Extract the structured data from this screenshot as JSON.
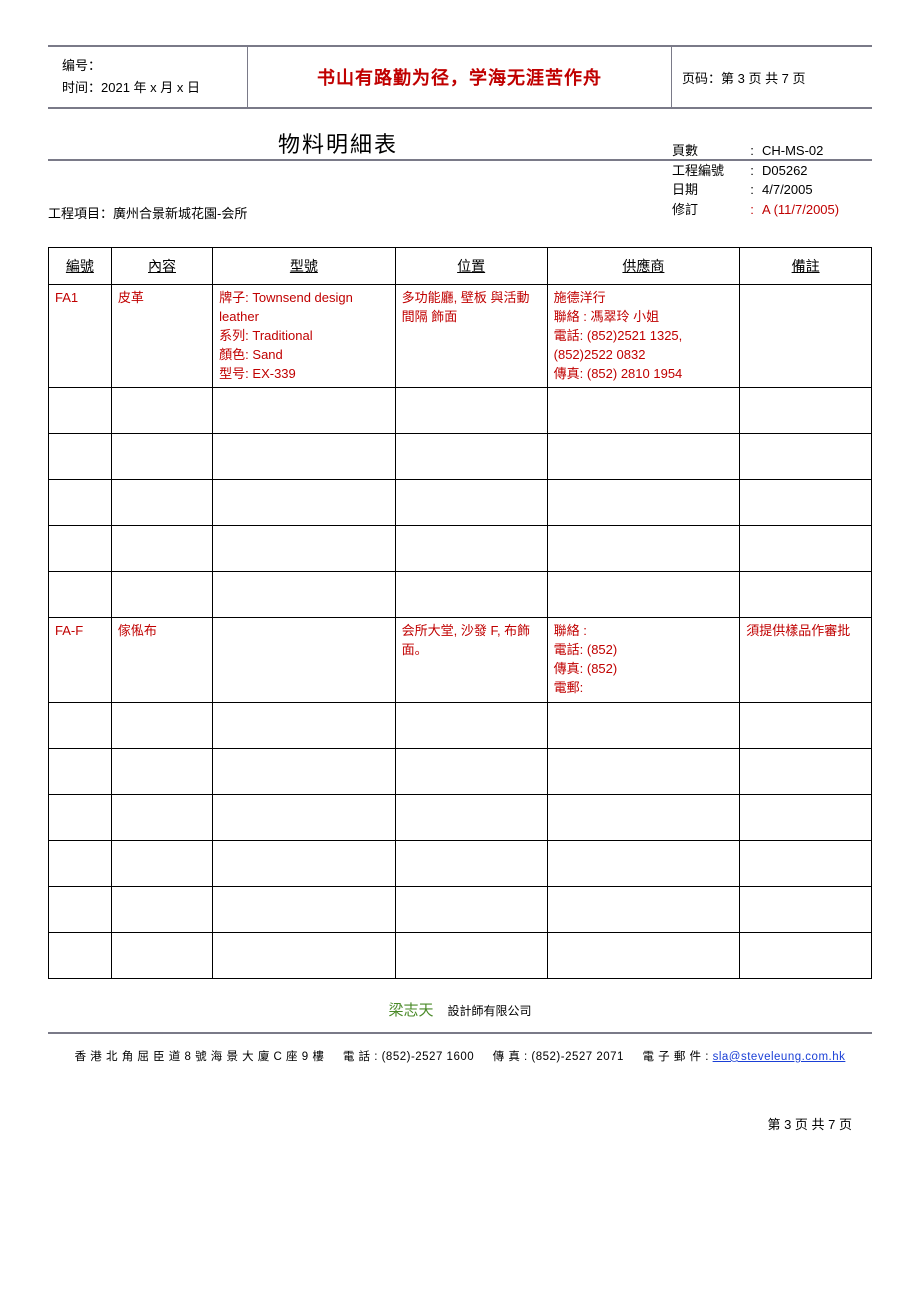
{
  "header": {
    "doc_no_label": "编号：",
    "time_label": "时间：",
    "time_value": "2021 年 x 月 x 日",
    "motto": "书山有路勤为径，学海无涯苦作舟",
    "page_label": "页码：第 3 页 共 7 页"
  },
  "title": "物料明細表",
  "meta": {
    "page_no": {
      "k": "頁數",
      "v": "CH-MS-02",
      "red": false
    },
    "proj_code": {
      "k": "工程編號",
      "v": "D05262",
      "red": false
    },
    "date": {
      "k": "日期",
      "v": "4/7/2005",
      "red": false
    },
    "rev": {
      "k": "修訂",
      "v": "A (11/7/2005)",
      "red": true
    }
  },
  "project": {
    "label": "工程項目：",
    "name": "廣州合景新城花園-会所"
  },
  "table": {
    "headers": [
      "編號",
      "內容",
      "型號",
      "位置",
      "供應商",
      "備註"
    ],
    "rows": [
      {
        "no": "FA1",
        "content": "皮革",
        "model": "牌子:  Townsend design leather\n系列:  Traditional\n顏色: Sand\n型号:  EX-339",
        "location": "多功能廳, 壁板  與活動間隔  飾面",
        "supplier": "施德洋行\n聯絡  :  馮翠玲  小姐\n電話:  (852)2521 1325,\n          (852)2522 0832\n傳真:  (852) 2810 1954",
        "remark": "",
        "red": true
      },
      {
        "empty": true
      },
      {
        "empty": true
      },
      {
        "empty": true
      },
      {
        "empty": true
      },
      {
        "empty": true
      },
      {
        "no": "FA-F",
        "content": "傢俬布",
        "model": "",
        "location": "会所大堂, 沙發 F, 布飾面。",
        "supplier": "聯絡  :\n電話:  (852)\n傳真:  (852)\n電郵:",
        "remark": "須提供樣品作審批",
        "red": true
      },
      {
        "empty": true
      },
      {
        "empty": true
      },
      {
        "empty": true
      },
      {
        "empty": true
      },
      {
        "empty": true
      },
      {
        "empty": true
      }
    ]
  },
  "company": {
    "name": "梁志天",
    "suffix": "設計師有限公司"
  },
  "footer": {
    "address": "香 港 北 角 屈 臣 道 8 號 海 景 大 廈 C 座 9 樓",
    "tel_label": "電 話 : ",
    "tel": "(852)-2527 1600",
    "fax_label": "傳 真 : ",
    "fax": "(852)-2527 2071",
    "email_label": "電 子 郵 件 : ",
    "email": "sla@steveleung.com.hk"
  },
  "page_num": "第 3 页 共 7 页"
}
